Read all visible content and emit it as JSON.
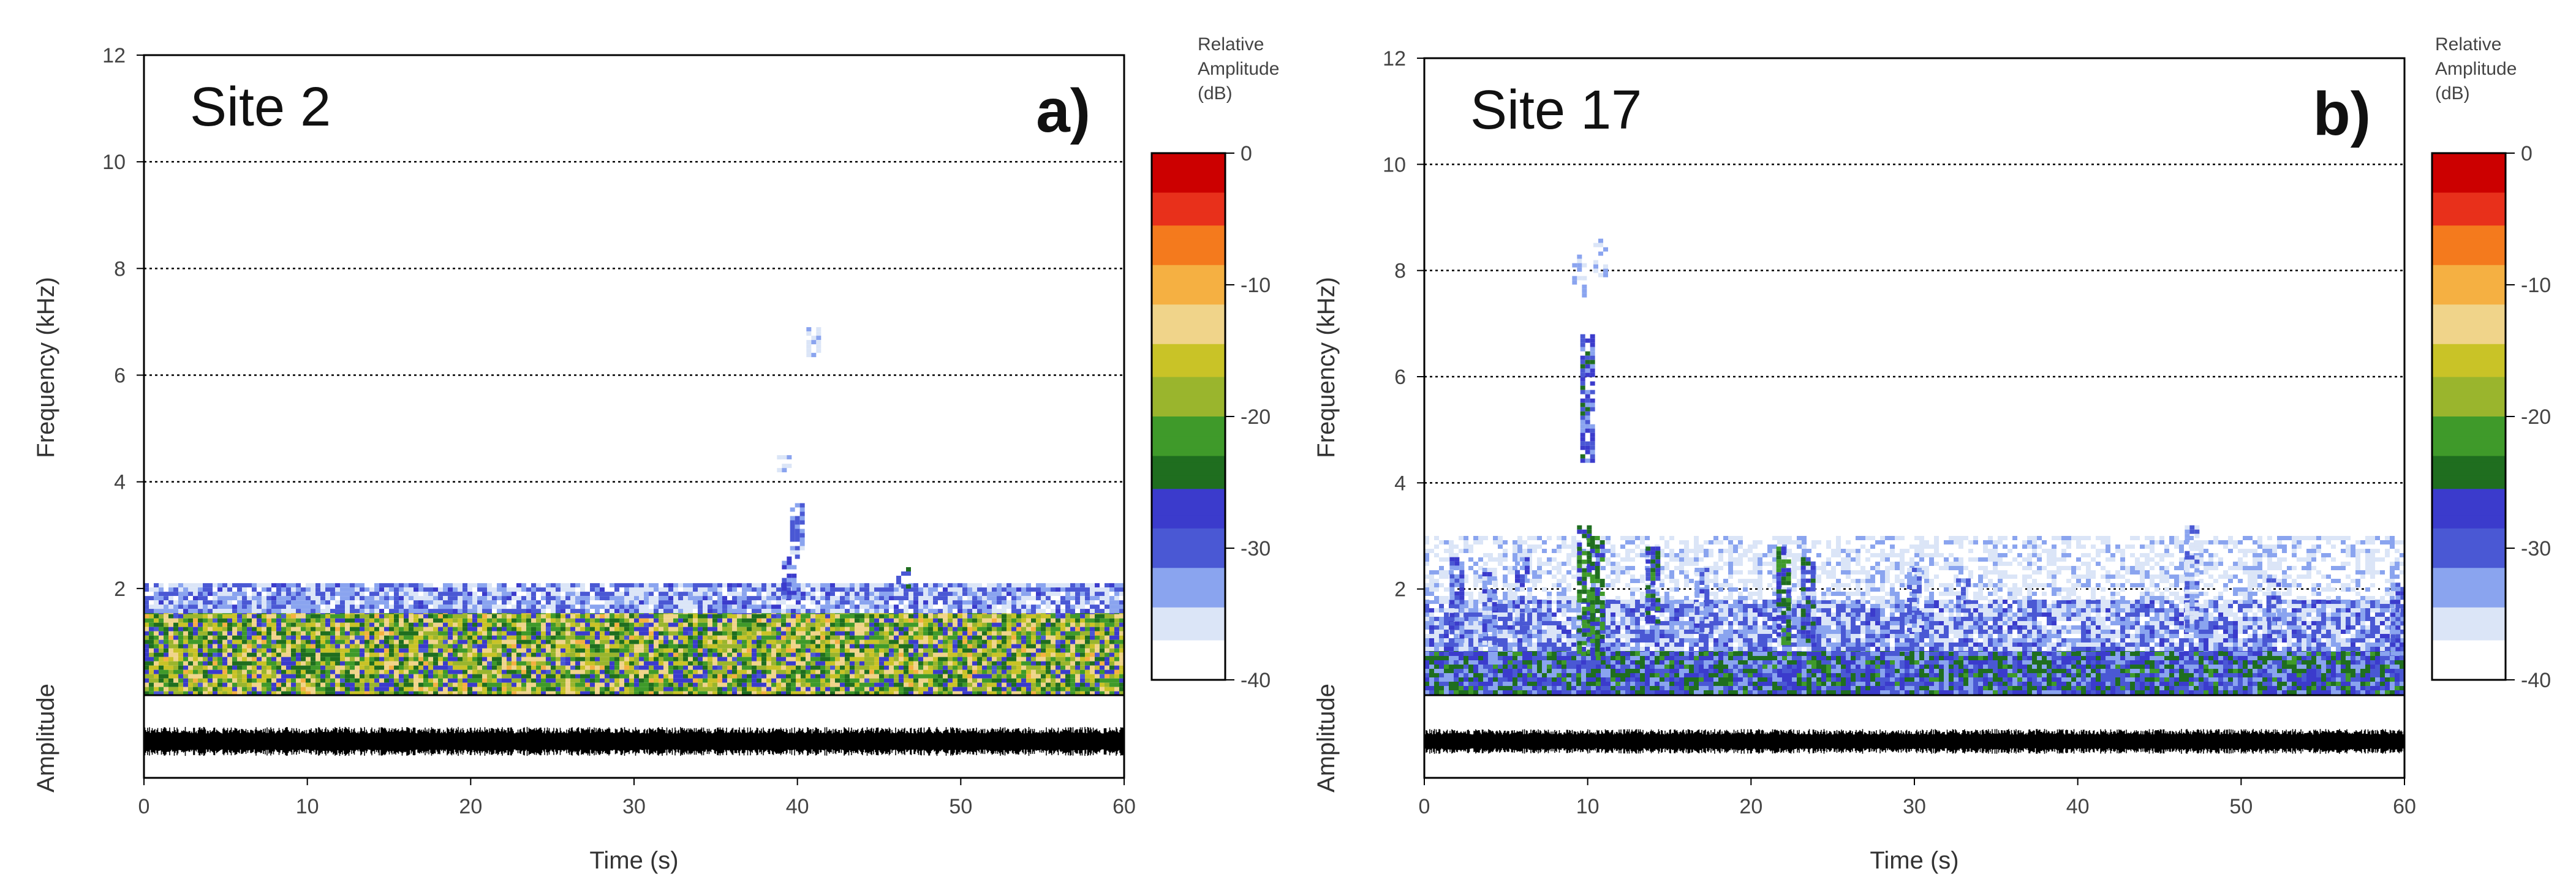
{
  "colors": {
    "colormap": [
      "#ffffff",
      "#dbe5f7",
      "#8aa4ef",
      "#4a58d4",
      "#3b3bcc",
      "#1f6e1f",
      "#3f9a2a",
      "#9ab52d",
      "#c9c327",
      "#f0d48a",
      "#f5b042",
      "#f47a1d",
      "#e8301b",
      "#cc0000"
    ],
    "waveform": "#000000",
    "gridline": "#000000",
    "frame": "#000000"
  },
  "chart_data": [
    {
      "type": "heatmap",
      "panel": "a)",
      "title": "Site 2",
      "xlabel": "Time (s)",
      "ylabel": "Frequency (kHz)",
      "amplitude_label": "Amplitude",
      "xlim": [
        0,
        60
      ],
      "ylim": [
        0,
        12
      ],
      "x_ticks": [
        "0",
        "10",
        "20",
        "30",
        "40",
        "50",
        "60"
      ],
      "y_ticks": [
        "2",
        "4",
        "6",
        "8",
        "10",
        "12"
      ],
      "gridlines_khz": [
        2,
        4,
        6,
        8,
        10
      ],
      "colorbar": {
        "title": [
          "Relative",
          "Amplitude",
          "(dB)"
        ],
        "range_db": [
          -40,
          0
        ],
        "ticks": [
          "0",
          "-10",
          "-20",
          "-30",
          "-40"
        ]
      },
      "energy_bands": [
        {
          "t_start": 0,
          "t_end": 60,
          "f_low": 0,
          "f_high": 1.6,
          "db_mean": -20,
          "db_spread": 9
        },
        {
          "t_start": 0,
          "t_end": 60,
          "f_low": 1.6,
          "f_high": 2.1,
          "db_mean": -33,
          "db_spread": 5
        }
      ],
      "events": [
        {
          "t": 40,
          "f_low": 2.6,
          "f_high": 3.6,
          "db": -33
        },
        {
          "t": 39.5,
          "f_low": 1.8,
          "f_high": 2.6,
          "db": -30
        },
        {
          "t": 46.5,
          "f_low": 2.0,
          "f_high": 2.4,
          "db": -28
        },
        {
          "t": 41,
          "f_low": 6.4,
          "f_high": 6.9,
          "db": -34
        },
        {
          "t": 39.2,
          "f_low": 4.2,
          "f_high": 4.5,
          "db": -37
        }
      ],
      "waveform_amplitude": 0.35
    },
    {
      "type": "heatmap",
      "panel": "b)",
      "title": "Site 17",
      "xlabel": "Time (s)",
      "ylabel": "Frequency (kHz)",
      "amplitude_label": "Amplitude",
      "xlim": [
        0,
        60
      ],
      "ylim": [
        0,
        12
      ],
      "x_ticks": [
        "0",
        "10",
        "20",
        "30",
        "40",
        "50",
        "60"
      ],
      "y_ticks": [
        "2",
        "4",
        "6",
        "8",
        "10",
        "12"
      ],
      "gridlines_khz": [
        2,
        4,
        6,
        8,
        10
      ],
      "colorbar": {
        "title": [
          "Relative",
          "Amplitude",
          "(dB)"
        ],
        "range_db": [
          -40,
          0
        ],
        "ticks": [
          "0",
          "-10",
          "-20",
          "-30",
          "-40"
        ]
      },
      "energy_bands": [
        {
          "t_start": 0,
          "t_end": 60,
          "f_low": 0,
          "f_high": 0.9,
          "db_mean": -28,
          "db_spread": 6
        },
        {
          "t_start": 0,
          "t_end": 60,
          "f_low": 0.9,
          "f_high": 1.8,
          "db_mean": -33,
          "db_spread": 5
        },
        {
          "t_start": 0,
          "t_end": 60,
          "f_low": 1.8,
          "f_high": 3.0,
          "db_mean": -37,
          "db_spread": 4
        }
      ],
      "events": [
        {
          "t": 10,
          "f_low": 4.4,
          "f_high": 6.8,
          "db": -29
        },
        {
          "t": 9.5,
          "f_low": 7.5,
          "f_high": 8.3,
          "db": -36
        },
        {
          "t": 10.8,
          "f_low": 7.9,
          "f_high": 8.6,
          "db": -36
        },
        {
          "t": 9.8,
          "f_low": 0.8,
          "f_high": 3.2,
          "db": -24
        },
        {
          "t": 10.6,
          "f_low": 0.8,
          "f_high": 3.0,
          "db": -24
        },
        {
          "t": 14,
          "f_low": 1.4,
          "f_high": 2.8,
          "db": -26
        },
        {
          "t": 22,
          "f_low": 1.0,
          "f_high": 2.8,
          "db": -25
        },
        {
          "t": 23.5,
          "f_low": 1.0,
          "f_high": 2.6,
          "db": -28
        },
        {
          "t": 2,
          "f_low": 1.0,
          "f_high": 2.6,
          "db": -30
        },
        {
          "t": 4,
          "f_low": 1.0,
          "f_high": 2.4,
          "db": -31
        },
        {
          "t": 6,
          "f_low": 1.2,
          "f_high": 2.6,
          "db": -31
        },
        {
          "t": 17,
          "f_low": 1.2,
          "f_high": 2.4,
          "db": -32
        },
        {
          "t": 30,
          "f_low": 1.2,
          "f_high": 2.4,
          "db": -33
        },
        {
          "t": 33,
          "f_low": 1.4,
          "f_high": 2.2,
          "db": -33
        },
        {
          "t": 47,
          "f_low": 1.2,
          "f_high": 3.2,
          "db": -33
        },
        {
          "t": 52,
          "f_low": 1.2,
          "f_high": 2.2,
          "db": -32
        },
        {
          "t": 59.6,
          "f_low": 0.8,
          "f_high": 2.2,
          "db": -30
        }
      ],
      "waveform_amplitude": 0.3
    }
  ]
}
